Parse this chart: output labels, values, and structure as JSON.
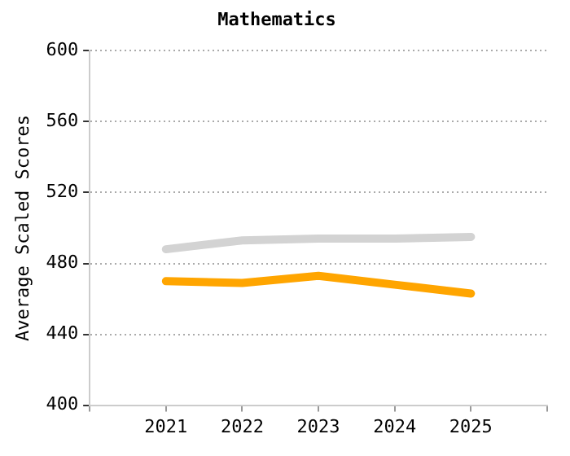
{
  "chart_data": {
    "type": "line",
    "title": "Mathematics",
    "ylabel": "Average Scaled Scores",
    "x": [
      2021,
      2022,
      2023,
      2024,
      2025
    ],
    "xlim": [
      2020,
      2026
    ],
    "xticks": [
      {
        "value": 2020,
        "label": null
      },
      2021,
      2022,
      2023,
      2024,
      2025,
      {
        "value": 2026,
        "label": null
      }
    ],
    "ylim": [
      400,
      600
    ],
    "yticks": [
      400,
      440,
      480,
      520,
      560,
      600
    ],
    "grid": "y",
    "legend": false,
    "marker": "none",
    "line_style": "solid",
    "series": [
      {
        "color": "#d3d3d3",
        "values": [
          488,
          493,
          494,
          494,
          495
        ]
      },
      {
        "color": "#ffa500",
        "values": [
          470,
          469,
          473,
          468,
          463
        ]
      }
    ]
  }
}
